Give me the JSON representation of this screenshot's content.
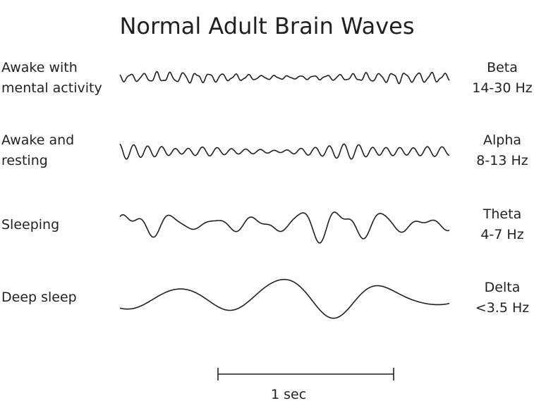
{
  "title": "Normal Adult Brain Waves",
  "rows": [
    {
      "state": [
        "Awake with",
        "mental activity"
      ],
      "wave": "Beta",
      "range": "14-30 Hz"
    },
    {
      "state": [
        "Awake and",
        "resting"
      ],
      "wave": "Alpha",
      "range": "8-13 Hz"
    },
    {
      "state": [
        "Sleeping"
      ],
      "wave": "Theta",
      "range": "4-7 Hz"
    },
    {
      "state": [
        "Deep sleep"
      ],
      "wave": "Delta",
      "range": "<3.5 Hz"
    }
  ],
  "scale_bar": {
    "label": "1 sec"
  },
  "colors": {
    "ink": "#231f20"
  }
}
